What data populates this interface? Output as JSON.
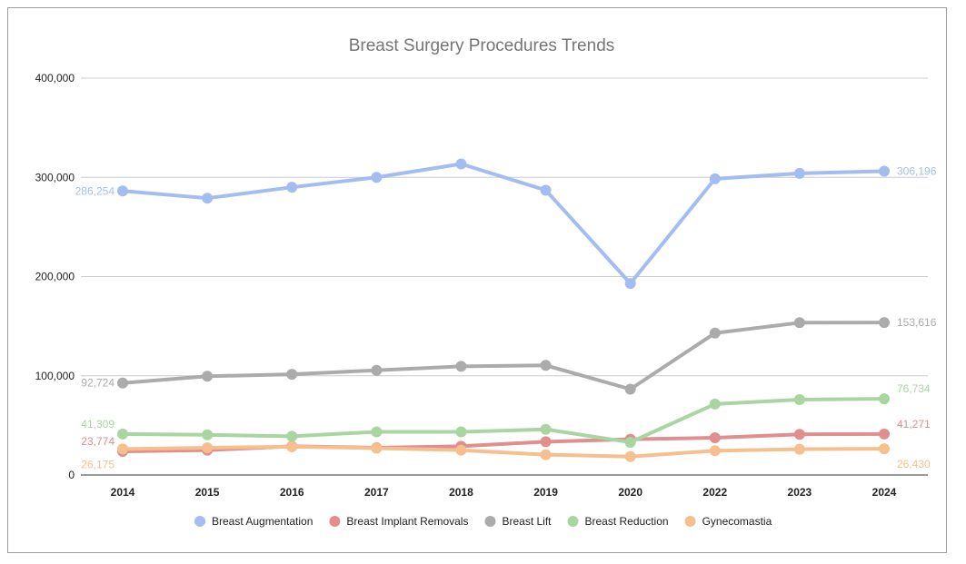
{
  "chart_data": {
    "type": "line",
    "title": "Breast Surgery Procedures Trends",
    "xlabel": "",
    "ylabel": "",
    "ylim": [
      0,
      400000
    ],
    "yticks": [
      0,
      100000,
      200000,
      300000,
      400000
    ],
    "ytick_labels": [
      "0",
      "100,000",
      "200,000",
      "300,000",
      "400,000"
    ],
    "categories": [
      "2014",
      "2015",
      "2016",
      "2017",
      "2018",
      "2019",
      "2020",
      "2022",
      "2023",
      "2024"
    ],
    "grid": true,
    "legend_position": "bottom",
    "series": [
      {
        "name": "Breast Augmentation",
        "color": "#a4bdf0",
        "values": [
          286254,
          279000,
          290000,
          300000,
          313500,
          287000,
          193000,
          298500,
          304000,
          306196
        ]
      },
      {
        "name": "Breast Implant Removals",
        "color": "#e08e8e",
        "values": [
          23774,
          25000,
          29000,
          27500,
          29000,
          33500,
          36000,
          37500,
          41000,
          41271
        ]
      },
      {
        "name": "Breast Lift",
        "color": "#ababab",
        "values": [
          92724,
          99500,
          101500,
          105500,
          109500,
          110500,
          86500,
          143000,
          153500,
          153616
        ]
      },
      {
        "name": "Breast Reduction",
        "color": "#a8d5a0",
        "values": [
          41309,
          40500,
          39000,
          43500,
          43500,
          46000,
          33000,
          71500,
          76000,
          76734
        ]
      },
      {
        "name": "Gynecomastia",
        "color": "#f5c08e",
        "values": [
          26175,
          27500,
          28500,
          27000,
          25000,
          20500,
          18500,
          24500,
          26000,
          26430
        ]
      }
    ],
    "data_labels": [
      {
        "series": 0,
        "index": 0,
        "text": "286,254",
        "side": "left"
      },
      {
        "series": 0,
        "index": 9,
        "text": "306,196",
        "side": "right"
      },
      {
        "series": 2,
        "index": 0,
        "text": "92,724",
        "side": "left"
      },
      {
        "series": 2,
        "index": 9,
        "text": "153,616",
        "side": "right"
      },
      {
        "series": 3,
        "index": 0,
        "text": "41,309",
        "side": "left-above"
      },
      {
        "series": 3,
        "index": 9,
        "text": "76,734",
        "side": "right-above"
      },
      {
        "series": 1,
        "index": 0,
        "text": "23,774",
        "side": "left-above"
      },
      {
        "series": 1,
        "index": 9,
        "text": "41,271",
        "side": "right-above"
      },
      {
        "series": 4,
        "index": 0,
        "text": "26,175",
        "side": "left-below"
      },
      {
        "series": 4,
        "index": 9,
        "text": "26,430",
        "side": "right-below"
      }
    ]
  }
}
